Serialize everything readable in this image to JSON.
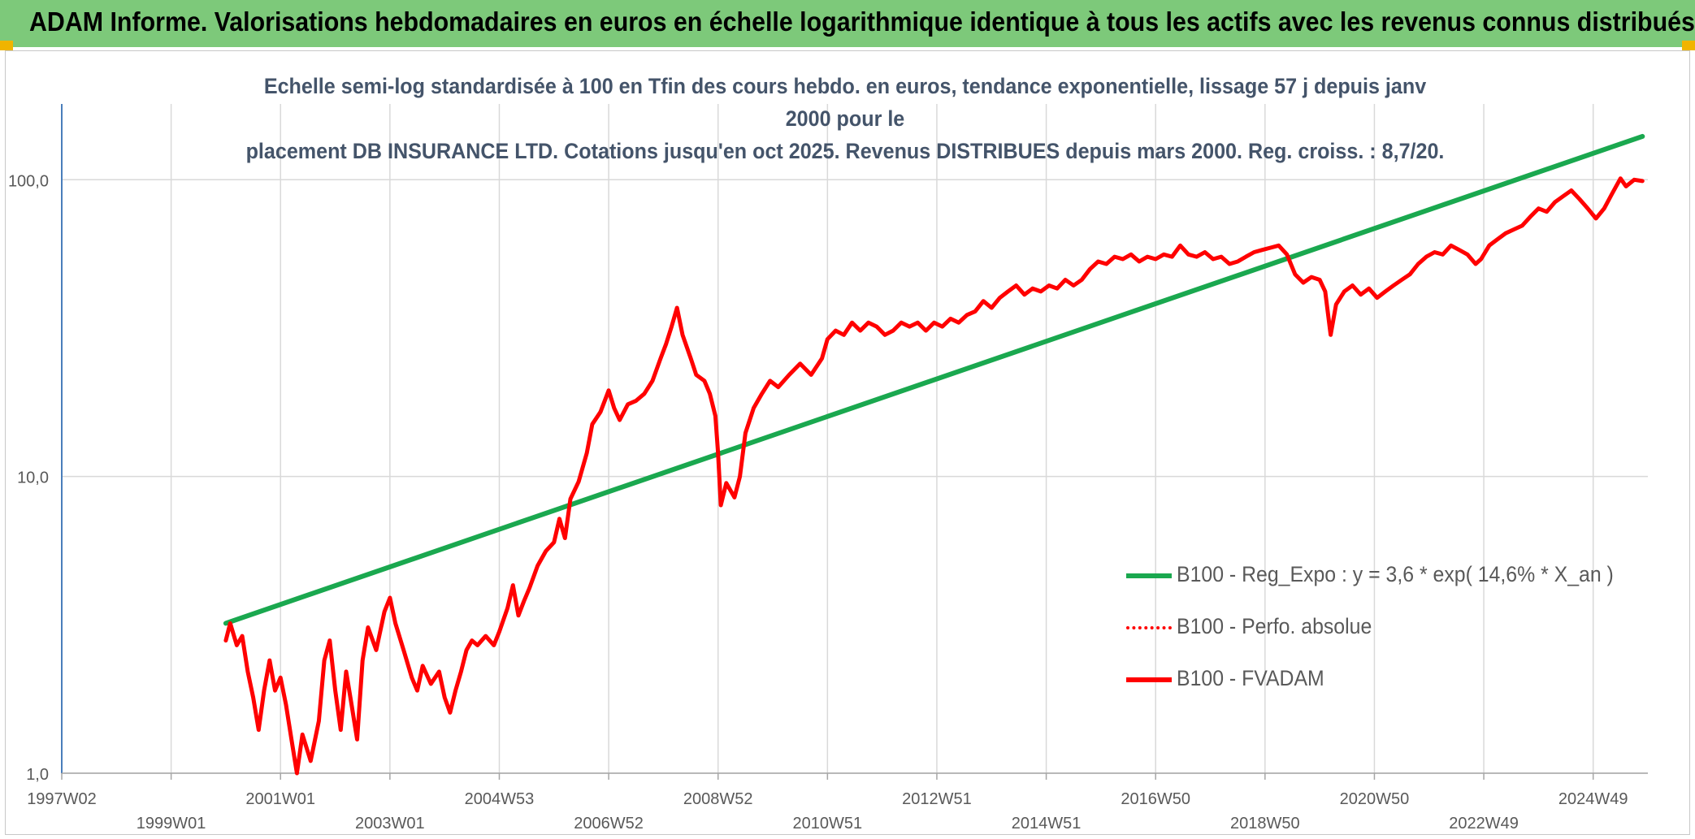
{
  "header": {
    "title": "ADAM Informe. Valorisations hebdomadaires en euros en échelle logarithmique identique à tous les actifs avec les revenus connus distribués"
  },
  "chart_data": {
    "type": "line",
    "subtitle_line1": "Echelle semi-log standardisée à 100 en Tfin des cours hebdo. en euros, tendance exponentielle, lissage 57 j depuis janv 2000 pour le",
    "subtitle_line2": "placement DB INSURANCE LTD. Cotations jusqu'en oct 2025. Revenus DISTRIBUES depuis mars 2000. Reg. croiss. : 8,7/20.",
    "y_scale": "log",
    "ylim": [
      1,
      180
    ],
    "xlim": [
      1997.0,
      2026.0
    ],
    "y_ticks": [
      {
        "value": 1,
        "label": "1,0"
      },
      {
        "value": 10,
        "label": "10,0"
      },
      {
        "value": 100,
        "label": "100,0"
      }
    ],
    "x_ticks": [
      {
        "value": 1997.0,
        "label": "1997W02"
      },
      {
        "value": 1999.0,
        "label": "1999W01"
      },
      {
        "value": 2001.0,
        "label": "2001W01"
      },
      {
        "value": 2003.0,
        "label": "2003W01"
      },
      {
        "value": 2005.0,
        "label": "2004W53"
      },
      {
        "value": 2007.0,
        "label": "2006W52"
      },
      {
        "value": 2009.0,
        "label": "2008W52"
      },
      {
        "value": 2011.0,
        "label": "2010W51"
      },
      {
        "value": 2013.0,
        "label": "2012W51"
      },
      {
        "value": 2015.0,
        "label": "2014W51"
      },
      {
        "value": 2017.0,
        "label": "2016W50"
      },
      {
        "value": 2019.0,
        "label": "2018W50"
      },
      {
        "value": 2021.0,
        "label": "2020W50"
      },
      {
        "value": 2023.0,
        "label": "2022W49"
      },
      {
        "value": 2025.0,
        "label": "2024W49"
      }
    ],
    "grid": "vertical and horizontal",
    "legend_position": "lower-right",
    "series": [
      {
        "name": "B100 - Reg_Expo : y = 3,6 * exp( 14,6% *  X_an )",
        "color": "#1aa84f",
        "style": "solid",
        "points": [
          [
            2000.0,
            3.2
          ],
          [
            2025.9,
            140
          ]
        ]
      },
      {
        "name": "B100 - Perfo. absolue",
        "color": "#ff0000",
        "style": "dotted",
        "points": []
      },
      {
        "name": "B100 - FVADAM",
        "color": "#ff0000",
        "style": "solid",
        "points": [
          [
            2000.0,
            2.8
          ],
          [
            2000.08,
            3.2
          ],
          [
            2000.2,
            2.7
          ],
          [
            2000.3,
            2.9
          ],
          [
            2000.4,
            2.2
          ],
          [
            2000.5,
            1.8
          ],
          [
            2000.6,
            1.4
          ],
          [
            2000.7,
            1.9
          ],
          [
            2000.8,
            2.4
          ],
          [
            2000.9,
            1.9
          ],
          [
            2001.0,
            2.1
          ],
          [
            2001.1,
            1.7
          ],
          [
            2001.2,
            1.3
          ],
          [
            2001.3,
            1.0
          ],
          [
            2001.4,
            1.35
          ],
          [
            2001.55,
            1.1
          ],
          [
            2001.7,
            1.5
          ],
          [
            2001.8,
            2.4
          ],
          [
            2001.9,
            2.8
          ],
          [
            2002.0,
            1.9
          ],
          [
            2002.1,
            1.4
          ],
          [
            2002.2,
            2.2
          ],
          [
            2002.3,
            1.7
          ],
          [
            2002.4,
            1.3
          ],
          [
            2002.5,
            2.4
          ],
          [
            2002.6,
            3.1
          ],
          [
            2002.75,
            2.6
          ],
          [
            2002.9,
            3.5
          ],
          [
            2003.0,
            3.9
          ],
          [
            2003.1,
            3.2
          ],
          [
            2003.25,
            2.6
          ],
          [
            2003.4,
            2.1
          ],
          [
            2003.5,
            1.9
          ],
          [
            2003.6,
            2.3
          ],
          [
            2003.75,
            2.0
          ],
          [
            2003.9,
            2.2
          ],
          [
            2004.0,
            1.8
          ],
          [
            2004.1,
            1.6
          ],
          [
            2004.2,
            1.9
          ],
          [
            2004.3,
            2.2
          ],
          [
            2004.4,
            2.6
          ],
          [
            2004.5,
            2.8
          ],
          [
            2004.6,
            2.7
          ],
          [
            2004.75,
            2.9
          ],
          [
            2004.9,
            2.7
          ],
          [
            2005.0,
            3.0
          ],
          [
            2005.15,
            3.6
          ],
          [
            2005.25,
            4.3
          ],
          [
            2005.35,
            3.4
          ],
          [
            2005.45,
            3.8
          ],
          [
            2005.55,
            4.2
          ],
          [
            2005.7,
            5.0
          ],
          [
            2005.85,
            5.6
          ],
          [
            2006.0,
            6.0
          ],
          [
            2006.1,
            7.2
          ],
          [
            2006.2,
            6.2
          ],
          [
            2006.3,
            8.4
          ],
          [
            2006.45,
            9.6
          ],
          [
            2006.6,
            12
          ],
          [
            2006.7,
            15
          ],
          [
            2006.85,
            16.5
          ],
          [
            2007.0,
            19.5
          ],
          [
            2007.1,
            17
          ],
          [
            2007.2,
            15.5
          ],
          [
            2007.35,
            17.5
          ],
          [
            2007.5,
            18
          ],
          [
            2007.65,
            19
          ],
          [
            2007.8,
            21
          ],
          [
            2007.95,
            25
          ],
          [
            2008.05,
            28
          ],
          [
            2008.15,
            32
          ],
          [
            2008.25,
            37
          ],
          [
            2008.35,
            30
          ],
          [
            2008.5,
            25
          ],
          [
            2008.6,
            22
          ],
          [
            2008.75,
            21
          ],
          [
            2008.85,
            19
          ],
          [
            2008.95,
            16
          ],
          [
            2009.0,
            12
          ],
          [
            2009.05,
            8.0
          ],
          [
            2009.15,
            9.5
          ],
          [
            2009.3,
            8.5
          ],
          [
            2009.4,
            10
          ],
          [
            2009.5,
            14
          ],
          [
            2009.65,
            17
          ],
          [
            2009.8,
            19
          ],
          [
            2009.95,
            21
          ],
          [
            2010.1,
            20
          ],
          [
            2010.3,
            22
          ],
          [
            2010.5,
            24
          ],
          [
            2010.7,
            22
          ],
          [
            2010.9,
            25
          ],
          [
            2011.0,
            29
          ],
          [
            2011.15,
            31
          ],
          [
            2011.3,
            30
          ],
          [
            2011.45,
            33
          ],
          [
            2011.6,
            31
          ],
          [
            2011.75,
            33
          ],
          [
            2011.9,
            32
          ],
          [
            2012.05,
            30
          ],
          [
            2012.2,
            31
          ],
          [
            2012.35,
            33
          ],
          [
            2012.5,
            32
          ],
          [
            2012.65,
            33
          ],
          [
            2012.8,
            31
          ],
          [
            2012.95,
            33
          ],
          [
            2013.1,
            32
          ],
          [
            2013.25,
            34
          ],
          [
            2013.4,
            33
          ],
          [
            2013.55,
            35
          ],
          [
            2013.7,
            36
          ],
          [
            2013.85,
            39
          ],
          [
            2014.0,
            37
          ],
          [
            2014.15,
            40
          ],
          [
            2014.3,
            42
          ],
          [
            2014.45,
            44
          ],
          [
            2014.6,
            41
          ],
          [
            2014.75,
            43
          ],
          [
            2014.9,
            42
          ],
          [
            2015.05,
            44
          ],
          [
            2015.2,
            43
          ],
          [
            2015.35,
            46
          ],
          [
            2015.5,
            44
          ],
          [
            2015.65,
            46
          ],
          [
            2015.8,
            50
          ],
          [
            2015.95,
            53
          ],
          [
            2016.1,
            52
          ],
          [
            2016.25,
            55
          ],
          [
            2016.4,
            54
          ],
          [
            2016.55,
            56
          ],
          [
            2016.7,
            53
          ],
          [
            2016.85,
            55
          ],
          [
            2017.0,
            54
          ],
          [
            2017.15,
            56
          ],
          [
            2017.3,
            55
          ],
          [
            2017.45,
            60
          ],
          [
            2017.6,
            56
          ],
          [
            2017.75,
            55
          ],
          [
            2017.9,
            57
          ],
          [
            2018.05,
            54
          ],
          [
            2018.2,
            55
          ],
          [
            2018.35,
            52
          ],
          [
            2018.5,
            53
          ],
          [
            2018.65,
            55
          ],
          [
            2018.8,
            57
          ],
          [
            2018.95,
            58
          ],
          [
            2019.1,
            59
          ],
          [
            2019.25,
            60
          ],
          [
            2019.4,
            56
          ],
          [
            2019.55,
            48
          ],
          [
            2019.7,
            45
          ],
          [
            2019.85,
            47
          ],
          [
            2020.0,
            46
          ],
          [
            2020.1,
            42
          ],
          [
            2020.2,
            30
          ],
          [
            2020.3,
            38
          ],
          [
            2020.45,
            42
          ],
          [
            2020.6,
            44
          ],
          [
            2020.75,
            41
          ],
          [
            2020.9,
            43
          ],
          [
            2021.05,
            40
          ],
          [
            2021.2,
            42
          ],
          [
            2021.35,
            44
          ],
          [
            2021.5,
            46
          ],
          [
            2021.65,
            48
          ],
          [
            2021.8,
            52
          ],
          [
            2021.95,
            55
          ],
          [
            2022.1,
            57
          ],
          [
            2022.25,
            56
          ],
          [
            2022.4,
            60
          ],
          [
            2022.55,
            58
          ],
          [
            2022.7,
            56
          ],
          [
            2022.85,
            52
          ],
          [
            2022.95,
            54
          ],
          [
            2023.1,
            60
          ],
          [
            2023.25,
            63
          ],
          [
            2023.4,
            66
          ],
          [
            2023.55,
            68
          ],
          [
            2023.7,
            70
          ],
          [
            2023.85,
            75
          ],
          [
            2024.0,
            80
          ],
          [
            2024.15,
            78
          ],
          [
            2024.3,
            84
          ],
          [
            2024.45,
            88
          ],
          [
            2024.6,
            92
          ],
          [
            2024.75,
            86
          ],
          [
            2024.9,
            80
          ],
          [
            2025.05,
            74
          ],
          [
            2025.2,
            80
          ],
          [
            2025.35,
            90
          ],
          [
            2025.5,
            101
          ],
          [
            2025.6,
            95
          ],
          [
            2025.75,
            100
          ],
          [
            2025.9,
            99
          ]
        ]
      }
    ]
  }
}
